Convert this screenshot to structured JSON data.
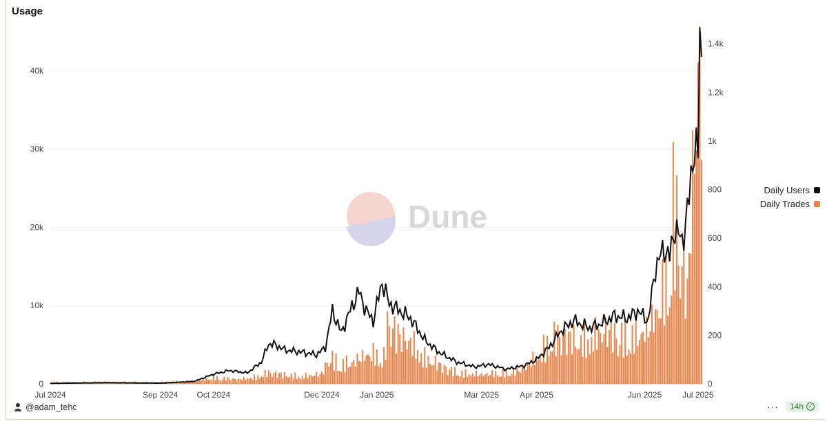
{
  "colors": {
    "users_line": "#111111",
    "trades_bar": "#e8844a",
    "grid": "#ececec"
  },
  "chart_data": {
    "type": "bar+line",
    "title": "Usage",
    "x_tick_labels": [
      "Jul 2024",
      "Sep 2024",
      "Oct 2024",
      "Dec 2024",
      "Jan 2025",
      "Mar 2025",
      "Apr 2025",
      "Jun 2025",
      "Jul 2025"
    ],
    "x_range": [
      "2024-07-01",
      "2025-07-03"
    ],
    "y_left": {
      "ticks": [
        "0",
        "10k",
        "20k",
        "30k",
        "40k"
      ],
      "range": [
        0,
        45000
      ]
    },
    "y_right": {
      "ticks": [
        "0",
        "200",
        "400",
        "600",
        "800",
        "1k",
        "1.2k",
        "1.4k"
      ],
      "range": [
        0,
        1450
      ]
    },
    "legend": [
      "Daily Users",
      "Daily Trades"
    ],
    "legend_position": "right",
    "grid": true,
    "series": [
      {
        "name": "Daily Trades",
        "type": "bar",
        "axis": "left",
        "points": [
          [
            "2024-07-01",
            200
          ],
          [
            "2024-08-01",
            250
          ],
          [
            "2024-09-01",
            200
          ],
          [
            "2024-09-20",
            400
          ],
          [
            "2024-10-01",
            800
          ],
          [
            "2024-10-15",
            600
          ],
          [
            "2024-10-25",
            900
          ],
          [
            "2024-11-01",
            1500
          ],
          [
            "2024-11-10",
            1200
          ],
          [
            "2024-11-20",
            1000
          ],
          [
            "2024-12-01",
            1300
          ],
          [
            "2024-12-05",
            3500
          ],
          [
            "2024-12-12",
            2500
          ],
          [
            "2024-12-20",
            3000
          ],
          [
            "2024-12-28",
            4000
          ],
          [
            "2025-01-05",
            3500
          ],
          [
            "2025-01-08",
            9200
          ],
          [
            "2025-01-12",
            6500
          ],
          [
            "2025-01-20",
            5500
          ],
          [
            "2025-01-28",
            3500
          ],
          [
            "2025-02-05",
            2500
          ],
          [
            "2025-02-15",
            1500
          ],
          [
            "2025-03-01",
            1200
          ],
          [
            "2025-03-15",
            1500
          ],
          [
            "2025-03-25",
            2000
          ],
          [
            "2025-04-01",
            3500
          ],
          [
            "2025-04-08",
            5500
          ],
          [
            "2025-04-15",
            6500
          ],
          [
            "2025-04-25",
            5500
          ],
          [
            "2025-05-01",
            6000
          ],
          [
            "2025-05-10",
            7000
          ],
          [
            "2025-05-20",
            6000
          ],
          [
            "2025-05-28",
            6500
          ],
          [
            "2025-06-03",
            7000
          ],
          [
            "2025-06-10",
            11000
          ],
          [
            "2025-06-15",
            15000
          ],
          [
            "2025-06-17",
            23000
          ],
          [
            "2025-06-20",
            19000
          ],
          [
            "2025-06-23",
            15000
          ],
          [
            "2025-06-25",
            11000
          ],
          [
            "2025-06-27",
            23000
          ],
          [
            "2025-06-29",
            30000
          ],
          [
            "2025-07-01",
            42000
          ],
          [
            "2025-07-02",
            45000
          ],
          [
            "2025-07-03",
            41000
          ]
        ]
      },
      {
        "name": "Daily Users",
        "type": "line",
        "axis": "right",
        "points": [
          [
            "2024-07-01",
            2
          ],
          [
            "2024-08-01",
            5
          ],
          [
            "2024-09-01",
            3
          ],
          [
            "2024-09-20",
            10
          ],
          [
            "2024-10-01",
            40
          ],
          [
            "2024-10-10",
            55
          ],
          [
            "2024-10-20",
            45
          ],
          [
            "2024-10-28",
            90
          ],
          [
            "2024-11-01",
            165
          ],
          [
            "2024-11-05",
            160
          ],
          [
            "2024-11-10",
            140
          ],
          [
            "2024-11-20",
            130
          ],
          [
            "2024-11-28",
            120
          ],
          [
            "2024-12-03",
            150
          ],
          [
            "2024-12-07",
            300
          ],
          [
            "2024-12-12",
            210
          ],
          [
            "2024-12-18",
            320
          ],
          [
            "2024-12-22",
            380
          ],
          [
            "2024-12-26",
            300
          ],
          [
            "2024-12-30",
            260
          ],
          [
            "2025-01-04",
            420
          ],
          [
            "2025-01-08",
            330
          ],
          [
            "2025-01-14",
            300
          ],
          [
            "2025-01-20",
            270
          ],
          [
            "2025-01-28",
            180
          ],
          [
            "2025-02-05",
            130
          ],
          [
            "2025-02-15",
            90
          ],
          [
            "2025-02-25",
            70
          ],
          [
            "2025-03-05",
            80
          ],
          [
            "2025-03-15",
            60
          ],
          [
            "2025-03-25",
            75
          ],
          [
            "2025-04-01",
            100
          ],
          [
            "2025-04-08",
            150
          ],
          [
            "2025-04-15",
            220
          ],
          [
            "2025-04-22",
            260
          ],
          [
            "2025-05-01",
            230
          ],
          [
            "2025-05-08",
            250
          ],
          [
            "2025-05-15",
            280
          ],
          [
            "2025-05-22",
            270
          ],
          [
            "2025-05-28",
            300
          ],
          [
            "2025-06-03",
            260
          ],
          [
            "2025-06-07",
            480
          ],
          [
            "2025-06-12",
            560
          ],
          [
            "2025-06-15",
            520
          ],
          [
            "2025-06-18",
            650
          ],
          [
            "2025-06-22",
            580
          ],
          [
            "2025-06-26",
            760
          ],
          [
            "2025-06-29",
            1000
          ],
          [
            "2025-07-01",
            930
          ],
          [
            "2025-07-02",
            1450
          ],
          [
            "2025-07-03",
            1300
          ]
        ]
      }
    ]
  },
  "watermark": "Dune",
  "footer": {
    "author": "@adam_tehc",
    "refresh": "14h",
    "more": "···"
  }
}
